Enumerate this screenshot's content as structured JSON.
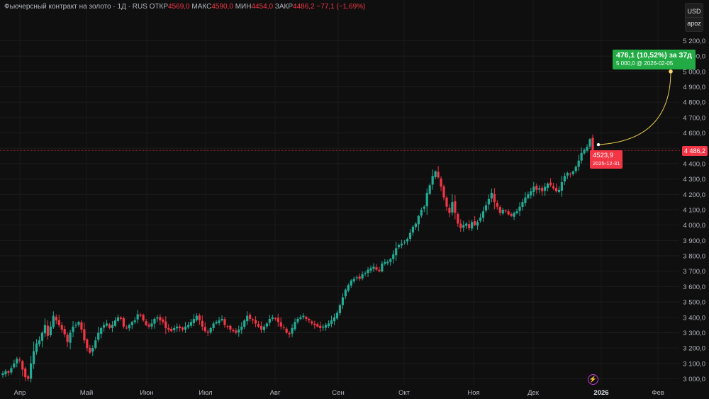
{
  "legend": {
    "title": "Фьючерсный контракт на золото · 1Д · RUS",
    "open_label": "ОТКР",
    "open_value": "4569,0",
    "high_label": "МАКС",
    "high_value": "4590,0",
    "low_label": "МИН",
    "low_value": "4454,0",
    "close_label": "ЗАКР",
    "close_value": "4486,2",
    "change": "−77,1 (−1,69%)"
  },
  "units_menu": {
    "currency": "USD",
    "scale": "apoz"
  },
  "colors": {
    "up": "#22ab94",
    "down": "#f23645",
    "background": "#0f0f0f",
    "projection": "#22ab44",
    "projection_line": "#e5c94a"
  },
  "projection": {
    "headline": "476,1 (10,52%) за 37д",
    "target": "5 000,0 @ 2026-02-05"
  },
  "last_price_tag": "4 486,2",
  "last_point_tag": {
    "value": "4523,9",
    "date": "2025-12-31"
  },
  "event_icon": "lightning-icon",
  "chart_data": {
    "type": "candlestick",
    "y_ticks": [
      "5 200,0",
      "5 100,0",
      "5 000,0",
      "4 900,0",
      "4 800,0",
      "4 700,0",
      "4 600,0",
      "4 500,0",
      "4 400,0",
      "4 300,0",
      "4 200,0",
      "4 100,0",
      "4 000,0",
      "3 900,0",
      "3 800,0",
      "3 700,0",
      "3 600,0",
      "3 500,0",
      "3 400,0",
      "3 300,0",
      "3 200,0",
      "3 100,0",
      "3 000,0"
    ],
    "x_ticks": [
      "Апр",
      "Май",
      "Июн",
      "Июл",
      "Авг",
      "Сен",
      "Окт",
      "Ноя",
      "Дек",
      "2026",
      "Фев"
    ],
    "ylim": [
      2970,
      5260
    ],
    "anchor_closes": [
      3035,
      3050,
      3040,
      3070,
      3100,
      3130,
      3120,
      3060,
      3010,
      3000,
      3100,
      3180,
      3230,
      3250,
      3300,
      3350,
      3280,
      3340,
      3410,
      3380,
      3350,
      3320,
      3290,
      3240,
      3300,
      3340,
      3350,
      3370,
      3320,
      3250,
      3200,
      3170,
      3200,
      3250,
      3300,
      3330,
      3350,
      3360,
      3330,
      3350,
      3380,
      3400,
      3390,
      3340,
      3330,
      3350,
      3370,
      3380,
      3420,
      3410,
      3380,
      3350,
      3340,
      3360,
      3390,
      3400,
      3380,
      3370,
      3330,
      3320,
      3310,
      3330,
      3340,
      3330,
      3320,
      3340,
      3350,
      3370,
      3390,
      3410,
      3380,
      3340,
      3310,
      3300,
      3330,
      3360,
      3370,
      3380,
      3390,
      3350,
      3340,
      3320,
      3310,
      3300,
      3320,
      3340,
      3380,
      3410,
      3390,
      3380,
      3360,
      3340,
      3320,
      3340,
      3360,
      3390,
      3400,
      3390,
      3370,
      3340,
      3330,
      3300,
      3290,
      3330,
      3370,
      3390,
      3400,
      3410,
      3390,
      3380,
      3360,
      3350,
      3340,
      3330,
      3340,
      3350,
      3360,
      3380,
      3400,
      3430,
      3480,
      3530,
      3580,
      3610,
      3640,
      3650,
      3660,
      3650,
      3680,
      3690,
      3710,
      3720,
      3730,
      3710,
      3700,
      3750,
      3760,
      3760,
      3780,
      3810,
      3850,
      3870,
      3880,
      3890,
      3910,
      3950,
      3990,
      4010,
      4060,
      4100,
      4120,
      4210,
      4260,
      4320,
      4350,
      4310,
      4250,
      4180,
      4120,
      4080,
      4150,
      4080,
      4010,
      3980,
      4000,
      4010,
      3980,
      4020,
      4000,
      4020,
      4050,
      4090,
      4130,
      4170,
      4210,
      4150,
      4120,
      4080,
      4100,
      4090,
      4070,
      4060,
      4080,
      4090,
      4120,
      4150,
      4180,
      4200,
      4220,
      4250,
      4230,
      4240,
      4220,
      4250,
      4270,
      4260,
      4240,
      4220,
      4230,
      4280,
      4320,
      4340,
      4330,
      4350,
      4380,
      4420,
      4470,
      4490,
      4510,
      4560,
      4524
    ],
    "last": {
      "open": 4569.0,
      "high": 4590.0,
      "low": 4454.0,
      "close": 4486.2
    },
    "current_price": 4486.2,
    "projection_target": 5000.0,
    "projection_date": "2026-02-05"
  }
}
